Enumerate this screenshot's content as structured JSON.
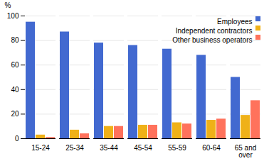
{
  "chart_data": {
    "type": "bar",
    "ylabel": "%",
    "categories": [
      "15-24",
      "25-34",
      "35-44",
      "45-54",
      "55-59",
      "60-64",
      "65 and\nover"
    ],
    "series": [
      {
        "name": "Employees",
        "values": [
          95,
          87,
          78,
          76,
          73,
          68,
          50
        ]
      },
      {
        "name": "Independent contractors",
        "values": [
          3,
          7,
          10,
          11,
          13,
          15,
          19
        ]
      },
      {
        "name": "Other business operators",
        "values": [
          1,
          4,
          10,
          11,
          12,
          16,
          31
        ]
      }
    ],
    "ylim": [
      0,
      100
    ],
    "yticks": [
      0,
      20,
      40,
      60,
      80,
      100
    ],
    "grid": true,
    "legend": "upper right"
  }
}
